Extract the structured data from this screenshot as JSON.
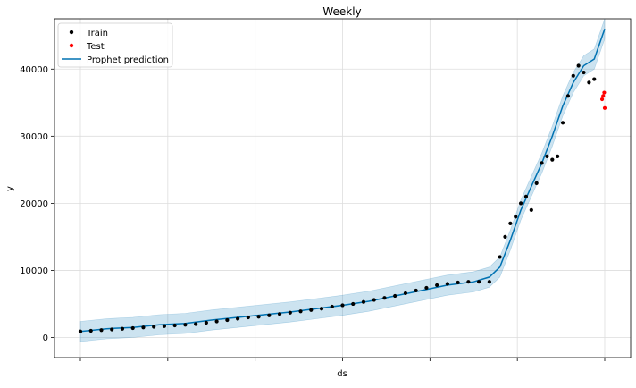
{
  "chart_data": {
    "type": "scatter",
    "title": "Weekly",
    "xlabel": "ds",
    "ylabel": "y",
    "x_tick_labels_visible": false,
    "x_range": [
      0,
      1
    ],
    "ylim": [
      -3000,
      47500
    ],
    "y_ticks": [
      0,
      10000,
      20000,
      30000,
      40000
    ],
    "y_tick_labels": [
      "0",
      "10000",
      "20000",
      "30000",
      "40000"
    ],
    "grid": true,
    "legend_position": "top-left",
    "legend": [
      {
        "label": "Train",
        "marker": "dot",
        "color": "#000000"
      },
      {
        "label": "Test",
        "marker": "dot",
        "color": "#ff0000"
      },
      {
        "label": "Prophet prediction",
        "marker": "line",
        "color": "#0072B2"
      }
    ],
    "colors": {
      "train": "#000000",
      "test": "#ff0000",
      "prediction": "#0072B2",
      "band": "#0072B2"
    },
    "series": [
      {
        "name": "Train",
        "x": [
          0.0,
          0.02,
          0.04,
          0.06,
          0.08,
          0.1,
          0.12,
          0.14,
          0.16,
          0.18,
          0.2,
          0.22,
          0.24,
          0.26,
          0.28,
          0.3,
          0.32,
          0.34,
          0.36,
          0.38,
          0.4,
          0.42,
          0.44,
          0.46,
          0.48,
          0.5,
          0.52,
          0.54,
          0.56,
          0.58,
          0.6,
          0.62,
          0.64,
          0.66,
          0.68,
          0.7,
          0.72,
          0.74,
          0.76,
          0.78,
          0.8,
          0.81,
          0.82,
          0.83,
          0.84,
          0.85,
          0.86,
          0.87,
          0.88,
          0.89,
          0.9,
          0.91,
          0.92,
          0.93,
          0.94,
          0.95,
          0.96,
          0.97,
          0.98
        ],
        "y": [
          900,
          1000,
          1100,
          1200,
          1300,
          1400,
          1500,
          1600,
          1700,
          1800,
          1900,
          2000,
          2200,
          2400,
          2600,
          2800,
          3000,
          3100,
          3300,
          3500,
          3700,
          3900,
          4100,
          4300,
          4600,
          4800,
          5000,
          5300,
          5600,
          5900,
          6200,
          6600,
          7000,
          7400,
          7800,
          8000,
          8200,
          8300,
          8300,
          8300,
          12000,
          15000,
          17000,
          18000,
          20000,
          21000,
          19000,
          23000,
          26000,
          27000,
          26500,
          27000,
          32000,
          36000,
          39000,
          40500,
          39500,
          38000,
          38500
        ]
      },
      {
        "name": "Test",
        "x": [
          0.995,
          0.997,
          0.999,
          1.0
        ],
        "y": [
          35500,
          36000,
          36500,
          34200
        ]
      },
      {
        "name": "Prophet prediction",
        "x": [
          0.0,
          0.05,
          0.1,
          0.15,
          0.2,
          0.25,
          0.3,
          0.35,
          0.4,
          0.45,
          0.5,
          0.55,
          0.6,
          0.65,
          0.7,
          0.75,
          0.78,
          0.8,
          0.82,
          0.84,
          0.86,
          0.88,
          0.9,
          0.92,
          0.94,
          0.96,
          0.98,
          1.0
        ],
        "y": [
          900,
          1300,
          1500,
          1900,
          2100,
          2600,
          3000,
          3400,
          3800,
          4300,
          4800,
          5400,
          6200,
          7000,
          7800,
          8300,
          9000,
          10500,
          14500,
          19000,
          22500,
          26000,
          30000,
          34500,
          38000,
          40500,
          41500,
          46000
        ]
      }
    ],
    "uncertainty_halfwidth": 1500
  }
}
